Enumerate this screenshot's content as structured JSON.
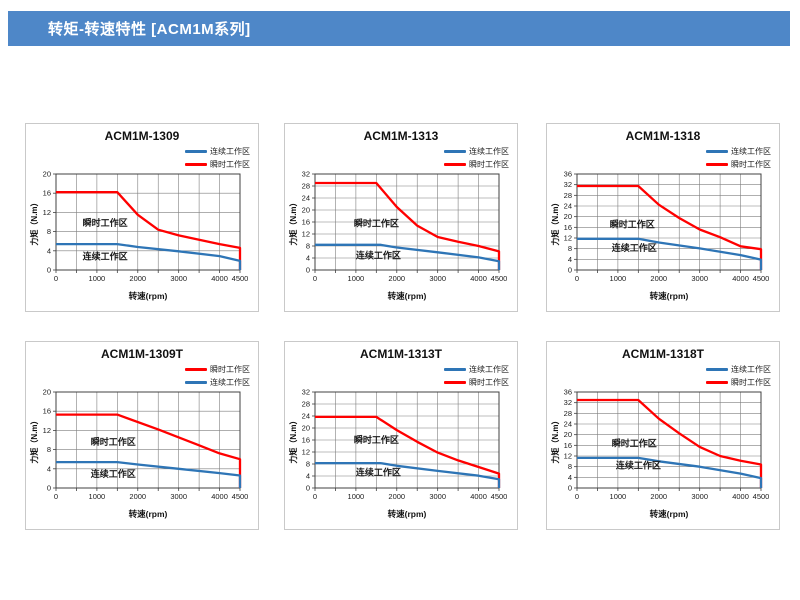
{
  "page": {
    "title": "转矩-转速特性 [ACM1M系列]"
  },
  "colors": {
    "header_bar": "#4e87c8",
    "continuous": "#2e75b6",
    "instant": "#ff0000",
    "grid": "#7f7f7f",
    "text": "#1a1a1a"
  },
  "legend_labels": {
    "continuous": "连续工作区",
    "instant": "瞬时工作区"
  },
  "chart_data": [
    {
      "type": "line",
      "title": "ACM1M-1309",
      "xlabel": "转速(rpm)",
      "ylabel": "力矩（N.m）",
      "xlim": [
        0,
        4500
      ],
      "ylim": [
        0,
        20
      ],
      "x_ticks": [
        0,
        1000,
        2000,
        3000,
        4000,
        4500
      ],
      "x_grid_step": 500,
      "y_tick_step": 4,
      "grid": true,
      "legend_position": "top-right",
      "legend": [
        {
          "series": "continuous",
          "label": "连续工作区"
        },
        {
          "series": "instant",
          "label": "瞬时工作区"
        }
      ],
      "series": [
        {
          "key": "instant",
          "name": "瞬时工作区",
          "points": [
            [
              0,
              16.2
            ],
            [
              1500,
              16.2
            ],
            [
              2000,
              11.5
            ],
            [
              2500,
              8.4
            ],
            [
              3000,
              7.2
            ],
            [
              3500,
              6.3
            ],
            [
              4000,
              5.4
            ],
            [
              4500,
              4.6
            ],
            [
              4500,
              0
            ]
          ]
        },
        {
          "key": "continuous",
          "name": "连续工作区",
          "points": [
            [
              0,
              5.4
            ],
            [
              1500,
              5.4
            ],
            [
              2000,
              4.8
            ],
            [
              3000,
              3.9
            ],
            [
              4000,
              2.9
            ],
            [
              4500,
              1.9
            ],
            [
              4500,
              0
            ]
          ]
        }
      ],
      "annotations": [
        {
          "text": "瞬时工作区",
          "x": 650,
          "y": 9.2
        },
        {
          "text": "连续工作区",
          "x": 650,
          "y": 2.2
        }
      ]
    },
    {
      "type": "line",
      "title": "ACM1M-1313",
      "xlabel": "转速(rpm)",
      "ylabel": "力矩（N.m）",
      "xlim": [
        0,
        4500
      ],
      "ylim": [
        0,
        32
      ],
      "x_ticks": [
        0,
        1000,
        2000,
        3000,
        4000,
        4500
      ],
      "x_grid_step": 500,
      "y_tick_step": 4,
      "grid": true,
      "legend_position": "top-right",
      "legend": [
        {
          "series": "continuous",
          "label": "连续工作区"
        },
        {
          "series": "instant",
          "label": "瞬时工作区"
        }
      ],
      "series": [
        {
          "key": "instant",
          "name": "瞬时工作区",
          "points": [
            [
              0,
              29
            ],
            [
              1500,
              29
            ],
            [
              2000,
              21
            ],
            [
              2500,
              14.8
            ],
            [
              3000,
              11
            ],
            [
              3500,
              9.4
            ],
            [
              4000,
              8
            ],
            [
              4500,
              6.2
            ],
            [
              4500,
              0
            ]
          ]
        },
        {
          "key": "continuous",
          "name": "连续工作区",
          "points": [
            [
              0,
              8.4
            ],
            [
              1600,
              8.4
            ],
            [
              2000,
              7.5
            ],
            [
              3000,
              5.9
            ],
            [
              4000,
              4.2
            ],
            [
              4500,
              2.9
            ],
            [
              4500,
              0
            ]
          ]
        }
      ],
      "annotations": [
        {
          "text": "瞬时工作区",
          "x": 950,
          "y": 14.5
        },
        {
          "text": "连续工作区",
          "x": 1000,
          "y": 3.9
        }
      ]
    },
    {
      "type": "line",
      "title": "ACM1M-1318",
      "xlabel": "转速(rpm)",
      "ylabel": "力矩（N.m）",
      "xlim": [
        0,
        4500
      ],
      "ylim": [
        0,
        36
      ],
      "x_ticks": [
        0,
        1000,
        2000,
        3000,
        4000,
        4500
      ],
      "x_grid_step": 500,
      "y_tick_step": 4,
      "grid": true,
      "legend_position": "top-right",
      "legend": [
        {
          "series": "continuous",
          "label": "连续工作区"
        },
        {
          "series": "instant",
          "label": "瞬时工作区"
        }
      ],
      "series": [
        {
          "key": "instant",
          "name": "瞬时工作区",
          "points": [
            [
              0,
              31.5
            ],
            [
              1500,
              31.5
            ],
            [
              2000,
              24.5
            ],
            [
              2500,
              19.5
            ],
            [
              3000,
              15.2
            ],
            [
              3500,
              12.3
            ],
            [
              4000,
              8.9
            ],
            [
              4500,
              7.8
            ],
            [
              4500,
              0
            ]
          ]
        },
        {
          "key": "continuous",
          "name": "连续工作区",
          "points": [
            [
              0,
              11.7
            ],
            [
              1500,
              11.7
            ],
            [
              2000,
              10.3
            ],
            [
              3000,
              8.1
            ],
            [
              4000,
              5.6
            ],
            [
              4500,
              3.9
            ],
            [
              4500,
              0
            ]
          ]
        }
      ],
      "annotations": [
        {
          "text": "瞬时工作区",
          "x": 800,
          "y": 16
        },
        {
          "text": "连续工作区",
          "x": 850,
          "y": 7.2
        }
      ]
    },
    {
      "type": "line",
      "title": "ACM1M-1309T",
      "xlabel": "转速(rpm)",
      "ylabel": "力矩（N.m）",
      "xlim": [
        0,
        4500
      ],
      "ylim": [
        0,
        20
      ],
      "x_ticks": [
        0,
        1000,
        2000,
        3000,
        4000,
        4500
      ],
      "x_grid_step": 500,
      "y_tick_step": 4,
      "grid": true,
      "legend_position": "top-right",
      "legend": [
        {
          "series": "instant",
          "label": "瞬时工作区"
        },
        {
          "series": "continuous",
          "label": "连续工作区"
        }
      ],
      "series": [
        {
          "key": "instant",
          "name": "瞬时工作区",
          "points": [
            [
              0,
              15.3
            ],
            [
              1500,
              15.3
            ],
            [
              2500,
              12.2
            ],
            [
              3500,
              8.9
            ],
            [
              4000,
              7.2
            ],
            [
              4500,
              6
            ],
            [
              4500,
              0
            ]
          ]
        },
        {
          "key": "continuous",
          "name": "连续工作区",
          "points": [
            [
              0,
              5.4
            ],
            [
              1500,
              5.4
            ],
            [
              2000,
              4.9
            ],
            [
              3000,
              4
            ],
            [
              4000,
              3.1
            ],
            [
              4500,
              2.6
            ],
            [
              4500,
              0
            ]
          ]
        }
      ],
      "annotations": [
        {
          "text": "瞬时工作区",
          "x": 850,
          "y": 9
        },
        {
          "text": "连续工作区",
          "x": 850,
          "y": 2.3
        }
      ]
    },
    {
      "type": "line",
      "title": "ACM1M-1313T",
      "xlabel": "转速(rpm)",
      "ylabel": "力矩（N.m）",
      "xlim": [
        0,
        4500
      ],
      "ylim": [
        0,
        32
      ],
      "x_ticks": [
        0,
        1000,
        2000,
        3000,
        4000,
        4500
      ],
      "x_grid_step": 500,
      "y_tick_step": 4,
      "grid": true,
      "legend_position": "top-right",
      "legend": [
        {
          "series": "continuous",
          "label": "连续工作区"
        },
        {
          "series": "instant",
          "label": "瞬时工作区"
        }
      ],
      "series": [
        {
          "key": "instant",
          "name": "瞬时工作区",
          "points": [
            [
              0,
              23.7
            ],
            [
              1500,
              23.7
            ],
            [
              2000,
              19.3
            ],
            [
              2500,
              15.4
            ],
            [
              3000,
              11.8
            ],
            [
              3500,
              9.2
            ],
            [
              4000,
              7
            ],
            [
              4500,
              4.8
            ],
            [
              4500,
              0
            ]
          ]
        },
        {
          "key": "continuous",
          "name": "连续工作区",
          "points": [
            [
              0,
              8.3
            ],
            [
              1600,
              8.3
            ],
            [
              2000,
              7.4
            ],
            [
              3000,
              5.7
            ],
            [
              4000,
              4.1
            ],
            [
              4500,
              2.9
            ],
            [
              4500,
              0
            ]
          ]
        }
      ],
      "annotations": [
        {
          "text": "瞬时工作区",
          "x": 950,
          "y": 15
        },
        {
          "text": "连续工作区",
          "x": 1000,
          "y": 4.1
        }
      ]
    },
    {
      "type": "line",
      "title": "ACM1M-1318T",
      "xlabel": "转速(rpm)",
      "ylabel": "力矩（N.m）",
      "xlim": [
        0,
        4500
      ],
      "ylim": [
        0,
        36
      ],
      "x_ticks": [
        0,
        1000,
        2000,
        3000,
        4000,
        4500
      ],
      "x_grid_step": 500,
      "y_tick_step": 4,
      "grid": true,
      "legend_position": "top-right",
      "legend": [
        {
          "series": "continuous",
          "label": "连续工作区"
        },
        {
          "series": "instant",
          "label": "瞬时工作区"
        }
      ],
      "series": [
        {
          "key": "instant",
          "name": "瞬时工作区",
          "points": [
            [
              0,
              33
            ],
            [
              1500,
              33
            ],
            [
              2000,
              26
            ],
            [
              2500,
              20.5
            ],
            [
              3000,
              15.4
            ],
            [
              3500,
              12
            ],
            [
              4000,
              10.2
            ],
            [
              4500,
              8.8
            ],
            [
              4500,
              0
            ]
          ]
        },
        {
          "key": "continuous",
          "name": "连续工作区",
          "points": [
            [
              0,
              11.3
            ],
            [
              1500,
              11.3
            ],
            [
              2000,
              10
            ],
            [
              3000,
              8
            ],
            [
              4000,
              5.4
            ],
            [
              4500,
              3.7
            ],
            [
              4500,
              0
            ]
          ]
        }
      ],
      "annotations": [
        {
          "text": "瞬时工作区",
          "x": 850,
          "y": 15.6
        },
        {
          "text": "连续工作区",
          "x": 950,
          "y": 7.3
        }
      ]
    }
  ]
}
